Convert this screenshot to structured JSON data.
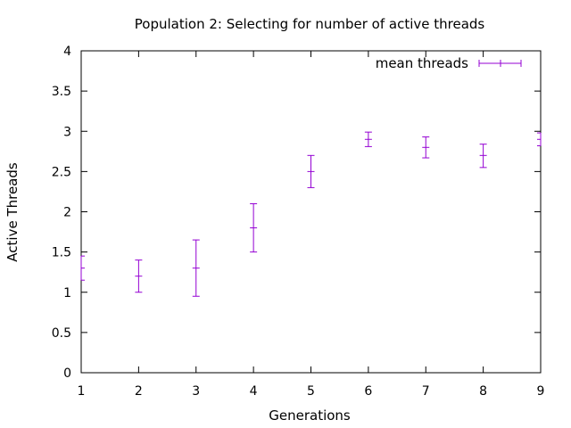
{
  "chart_data": {
    "type": "scatter",
    "title": "Population 2: Selecting for number of active threads",
    "xlabel": "Generations",
    "ylabel": "Active Threads",
    "xlim": [
      1,
      9
    ],
    "ylim": [
      0,
      4
    ],
    "xticks": [
      1,
      2,
      3,
      4,
      5,
      6,
      7,
      8,
      9
    ],
    "yticks": [
      0,
      0.5,
      1,
      1.5,
      2,
      2.5,
      3,
      3.5,
      4
    ],
    "grid": false,
    "legend_position": "top-right",
    "series": [
      {
        "name": "mean threads",
        "color": "#9400d3",
        "style": "errorbars",
        "points": [
          {
            "x": 1,
            "y": 1.3,
            "low": 1.15,
            "high": 1.45
          },
          {
            "x": 2,
            "y": 1.2,
            "low": 1.0,
            "high": 1.4
          },
          {
            "x": 3,
            "y": 1.3,
            "low": 0.95,
            "high": 1.65
          },
          {
            "x": 4,
            "y": 1.8,
            "low": 1.5,
            "high": 2.1
          },
          {
            "x": 5,
            "y": 2.5,
            "low": 2.3,
            "high": 2.7
          },
          {
            "x": 6,
            "y": 2.9,
            "low": 2.81,
            "high": 2.99
          },
          {
            "x": 7,
            "y": 2.8,
            "low": 2.67,
            "high": 2.93
          },
          {
            "x": 8,
            "y": 2.7,
            "low": 2.55,
            "high": 2.84
          },
          {
            "x": 9,
            "y": 2.9,
            "low": 2.82,
            "high": 2.98
          }
        ]
      }
    ]
  }
}
